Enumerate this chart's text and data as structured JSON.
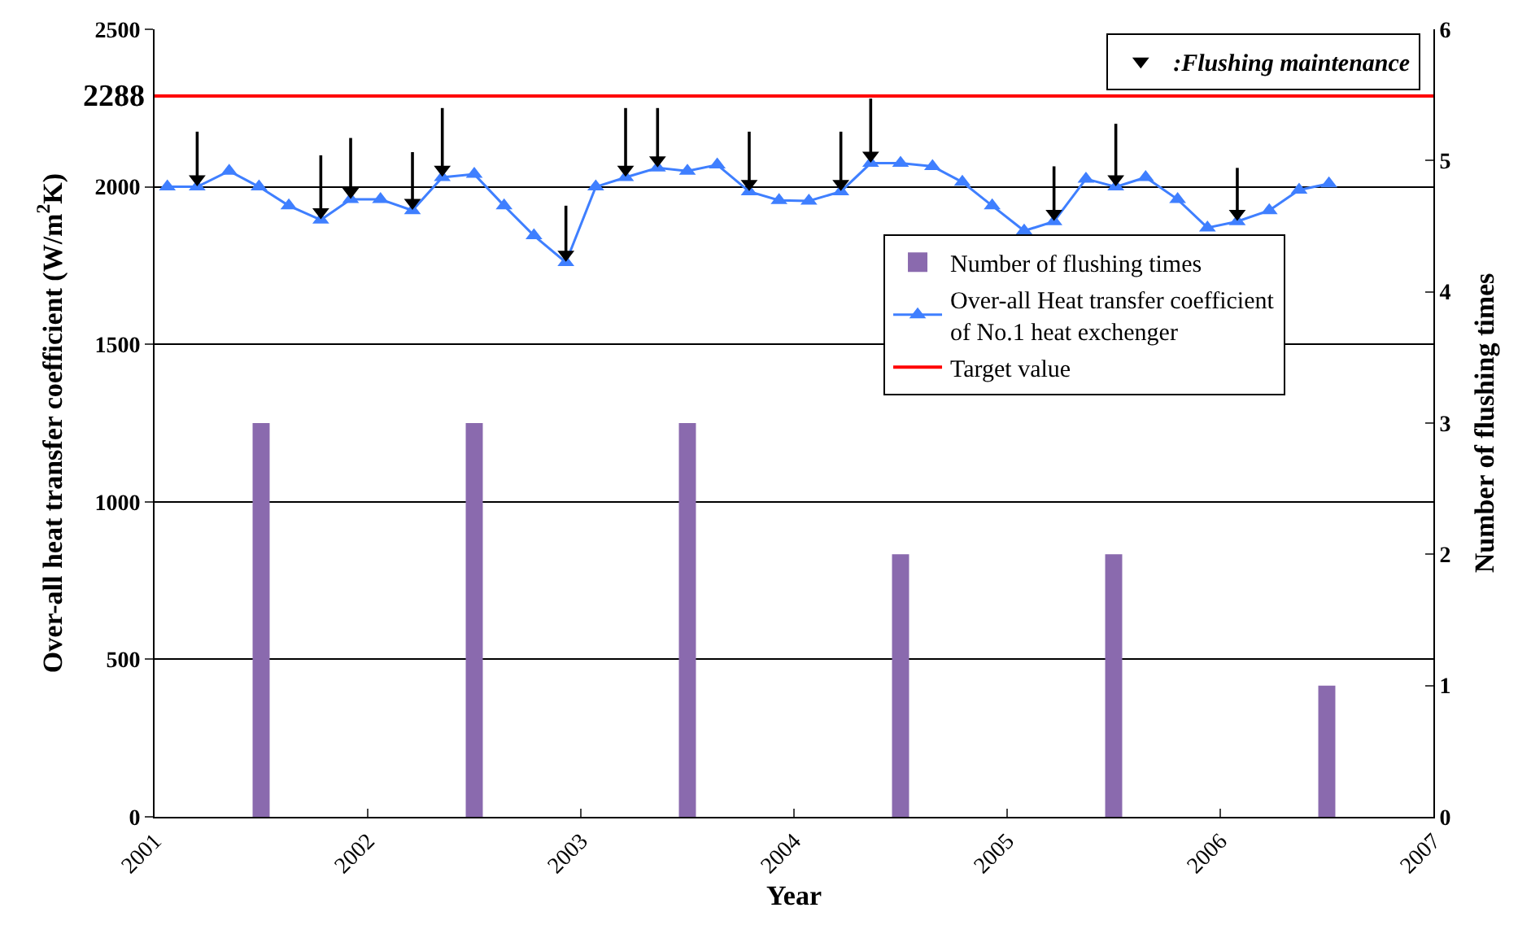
{
  "chart_data": {
    "type": "line",
    "xlabel": "Year",
    "ylabel": "Over-all heat transfer coefficient (W/m$^{2}$K)",
    "y2label": "Number of flushing times",
    "xlim": [
      2001,
      2007
    ],
    "xticks": [
      2001,
      2002,
      2003,
      2004,
      2005,
      2006,
      2007
    ],
    "ylim": [
      0,
      2500
    ],
    "yticks": [
      0,
      500,
      1000,
      1500,
      2000,
      2500
    ],
    "y2lim": [
      0,
      6
    ],
    "y2ticks": [
      0,
      1,
      2,
      3,
      4,
      5,
      6
    ],
    "grid": "y",
    "legend": "right",
    "series": [
      {
        "name": "Number of flushing times",
        "type": "bar",
        "axis": "y2",
        "color": "#8a6aae",
        "x": [
          2001.5,
          2002.5,
          2003.5,
          2004.5,
          2005.5,
          2006.5
        ],
        "values": [
          3,
          3,
          3,
          2,
          2,
          1
        ]
      },
      {
        "name": "Over-all Heat transfer coefficient of No.1 heat exchenger",
        "color": "#3f7fff",
        "marker": "triangle",
        "x": [
          2001.06,
          2001.2,
          2001.35,
          2001.49,
          2001.63,
          2001.78,
          2001.92,
          2002.06,
          2002.21,
          2002.35,
          2002.5,
          2002.64,
          2002.78,
          2002.93,
          2003.07,
          2003.21,
          2003.36,
          2003.5,
          2003.64,
          2003.79,
          2003.93,
          2004.07,
          2004.22,
          2004.36,
          2004.5,
          2004.65,
          2004.79,
          2004.93,
          2005.08,
          2005.22,
          2005.37,
          2005.51,
          2005.65,
          2005.8,
          2005.94,
          2006.08,
          2006.23,
          2006.37,
          2006.51
        ],
        "values": [
          2000,
          2000,
          2050,
          2000,
          1940,
          1895,
          1960,
          1960,
          1925,
          2030,
          2040,
          1940,
          1845,
          1760,
          2000,
          2030,
          2060,
          2050,
          2070,
          1985,
          1957,
          1955,
          1985,
          2075,
          2075,
          2065,
          2015,
          1940,
          1860,
          1890,
          2025,
          2000,
          2030,
          1960,
          1870,
          1890,
          1925,
          1990,
          2010
        ]
      },
      {
        "name": "Target value",
        "type": "line",
        "color": "#ff0000",
        "x": [
          2001,
          2007
        ],
        "values": [
          2288,
          2288
        ]
      },
      {
        "name": ":Flushing maintenance",
        "type": "scatter",
        "marker": "triangle",
        "color": "#000000",
        "x": [
          2001.2,
          2001.78,
          2001.92,
          2002.21,
          2002.35,
          2002.93,
          2003.21,
          2003.36,
          2003.79,
          2004.22,
          2004.36,
          2005.22,
          2005.51,
          2006.08
        ],
        "values": [
          2025,
          1920,
          1985,
          1950,
          2055,
          1785,
          2055,
          2085,
          2010,
          2010,
          2100,
          1915,
          2025,
          1915
        ],
        "errors": [
          [
            2025,
            2175
          ],
          [
            1920,
            2100
          ],
          [
            1985,
            2155
          ],
          [
            1950,
            2110
          ],
          [
            2055,
            2250
          ],
          [
            1785,
            1940
          ],
          [
            2055,
            2250
          ],
          [
            2085,
            2250
          ],
          [
            2010,
            2175
          ],
          [
            2010,
            2175
          ],
          [
            2100,
            2280
          ],
          [
            1915,
            2065
          ],
          [
            2025,
            2200
          ],
          [
            1915,
            2060
          ]
        ]
      }
    ],
    "annotations": [
      {
        "text": "2288",
        "x": 2001,
        "y": 2288
      }
    ]
  }
}
